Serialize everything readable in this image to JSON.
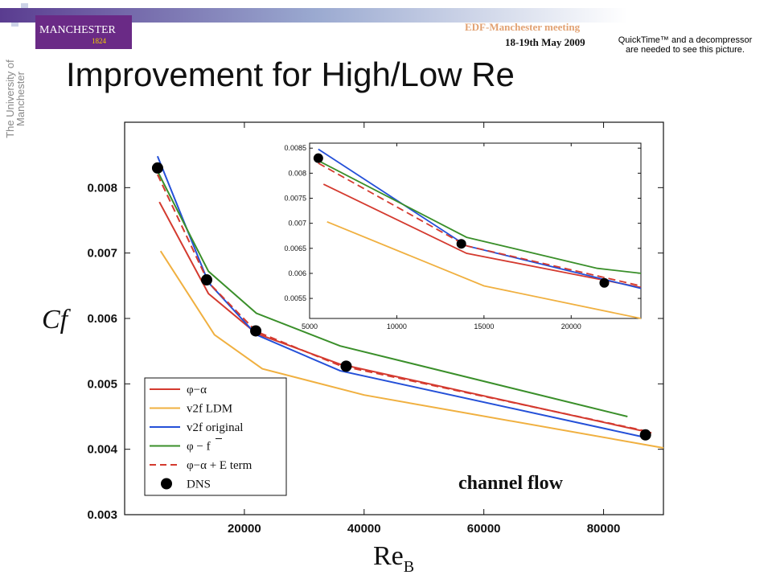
{
  "header": {
    "meeting_name": "EDF-Manchester meeting",
    "meeting_date": "18-19th May 2009",
    "logo_text": "MANCHESTER",
    "logo_year": "1824",
    "university_text": "The University of Manchester",
    "quicktime_notice": "QuickTime™ and a decompressor are needed to see this picture."
  },
  "slide": {
    "title": "Improvement for High/Low Re",
    "annotation": "channel flow"
  },
  "colors": {
    "phi_alpha": "#d43a2f",
    "v2f_ldm": "#f0b040",
    "v2f_original": "#2450d8",
    "phi_fbar": "#3a8f2a",
    "dns": "#000000",
    "logo_purple": "#6a2a86",
    "logo_gold": "#f5d000"
  },
  "chart_data": [
    {
      "type": "line",
      "title": "",
      "xlabel": "Re",
      "xlabel_subscript": "B",
      "ylabel": "Cf",
      "xlim": [
        0,
        90000
      ],
      "ylim": [
        0.003,
        0.009
      ],
      "xticks": [
        20000,
        40000,
        60000,
        80000
      ],
      "yticks": [
        0.003,
        0.004,
        0.005,
        0.006,
        0.007,
        0.008
      ],
      "xtick_labels": [
        "20000",
        "40000",
        "60000",
        "80000"
      ],
      "ytick_labels": [
        "0.003",
        "0.004",
        "0.005",
        "0.006",
        "0.007",
        "0.008"
      ],
      "legend_position": "bottom-left",
      "series": [
        {
          "name": "φ−α",
          "color": "#d43a2f",
          "dash": "solid",
          "x": [
            5800,
            14000,
            22000,
            36000,
            88000
          ],
          "y": [
            0.00778,
            0.00638,
            0.00577,
            0.0053,
            0.00425
          ]
        },
        {
          "name": "v2f LDM",
          "color": "#f0b040",
          "dash": "solid",
          "x": [
            6000,
            15000,
            23000,
            40000,
            90000
          ],
          "y": [
            0.00703,
            0.00575,
            0.00523,
            0.00483,
            0.00402
          ]
        },
        {
          "name": "v2f original",
          "color": "#2450d8",
          "dash": "solid",
          "x": [
            5500,
            14000,
            22000,
            36000,
            87000
          ],
          "y": [
            0.00848,
            0.00655,
            0.00575,
            0.0052,
            0.00418
          ]
        },
        {
          "name": "φ − f",
          "name_overline": "f",
          "color": "#3a8f2a",
          "dash": "solid",
          "x": [
            5500,
            14000,
            22000,
            36000,
            84000
          ],
          "y": [
            0.00825,
            0.00672,
            0.00608,
            0.00558,
            0.0045
          ]
        },
        {
          "name": "φ−α + E term",
          "color": "#d43a2f",
          "dash": "dashed",
          "x": [
            5500,
            14000,
            22000,
            36000,
            87000
          ],
          "y": [
            0.0082,
            0.00655,
            0.0058,
            0.00528,
            0.00428
          ]
        },
        {
          "name": "DNS",
          "color": "#000000",
          "marker": "circle",
          "x": [
            5500,
            13700,
            21900,
            37000,
            87000
          ],
          "y": [
            0.0083,
            0.00659,
            0.00581,
            0.00527,
            0.00422
          ]
        }
      ]
    },
    {
      "type": "line",
      "title": "",
      "xlim": [
        5000,
        24000
      ],
      "ylim": [
        0.0051,
        0.0086
      ],
      "xticks": [
        5000,
        10000,
        15000,
        20000
      ],
      "yticks": [
        0.0055,
        0.006,
        0.0065,
        0.007,
        0.0075,
        0.008,
        0.0085
      ],
      "xtick_labels": [
        "5000",
        "10000",
        "15000",
        "20000"
      ],
      "ytick_labels": [
        "0.0055",
        "0.006",
        "0.0065",
        "0.007",
        "0.0075",
        "0.008",
        "0.0085"
      ],
      "series": [
        {
          "color": "#d43a2f",
          "dash": "solid",
          "x": [
            5800,
            14000,
            24000
          ],
          "y": [
            0.00778,
            0.0064,
            0.00572
          ]
        },
        {
          "color": "#f0b040",
          "dash": "solid",
          "x": [
            6000,
            15000,
            24000
          ],
          "y": [
            0.00703,
            0.00575,
            0.0051
          ]
        },
        {
          "color": "#2450d8",
          "dash": "solid",
          "x": [
            5500,
            14000,
            24000
          ],
          "y": [
            0.00848,
            0.00655,
            0.0057
          ]
        },
        {
          "color": "#3a8f2a",
          "dash": "solid",
          "x": [
            5500,
            14000,
            21500,
            24000
          ],
          "y": [
            0.00825,
            0.00672,
            0.0061,
            0.006
          ]
        },
        {
          "color": "#d43a2f",
          "dash": "dashed",
          "x": [
            5500,
            14000,
            24000
          ],
          "y": [
            0.0082,
            0.00655,
            0.00575
          ]
        },
        {
          "color": "#000000",
          "marker": "circle",
          "x": [
            5500,
            13700,
            21900
          ],
          "y": [
            0.0083,
            0.00659,
            0.00581
          ]
        }
      ]
    }
  ]
}
